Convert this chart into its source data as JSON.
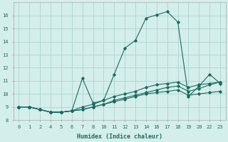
{
  "xlabel": "Humidex (Indice chaleur)",
  "bg_color": "#d4eeeb",
  "grid_color": "#b0d8d4",
  "line_color": "#1a6b5e",
  "xtick_labels": [
    "0",
    "1",
    "2",
    "4",
    "5",
    "6",
    "7",
    "8",
    "10",
    "11",
    "12",
    "13",
    "14",
    "16",
    "17",
    "18",
    "19",
    "20",
    "22",
    "23"
  ],
  "ytick_labels": [
    "8",
    "9",
    "10",
    "11",
    "12",
    "13",
    "14",
    "15",
    "16"
  ],
  "ylim": [
    8.0,
    17.0
  ],
  "series": [
    {
      "xi": [
        0,
        1,
        2,
        3,
        4,
        5,
        6,
        7,
        8,
        9,
        10,
        11,
        12,
        13,
        14,
        15,
        16,
        17,
        18,
        19
      ],
      "y": [
        9.0,
        9.0,
        8.8,
        8.6,
        8.6,
        8.7,
        11.2,
        9.3,
        9.5,
        11.5,
        13.5,
        14.1,
        15.8,
        16.05,
        16.3,
        15.5,
        9.8,
        10.6,
        11.5,
        10.8
      ]
    },
    {
      "xi": [
        0,
        1,
        2,
        3,
        4,
        5,
        6,
        7,
        8,
        9,
        10,
        11,
        12,
        13,
        14,
        15,
        16,
        17,
        18,
        19
      ],
      "y": [
        9.0,
        9.0,
        8.8,
        8.6,
        8.6,
        8.7,
        9.0,
        9.2,
        9.5,
        9.8,
        10.0,
        10.2,
        10.5,
        10.7,
        10.8,
        10.9,
        10.5,
        10.7,
        10.8,
        10.9
      ]
    },
    {
      "xi": [
        0,
        1,
        2,
        3,
        4,
        5,
        6,
        7,
        8,
        9,
        10,
        11,
        12,
        13,
        14,
        15,
        16,
        17,
        18,
        19
      ],
      "y": [
        9.0,
        9.0,
        8.8,
        8.6,
        8.6,
        8.7,
        8.8,
        9.0,
        9.2,
        9.4,
        9.6,
        9.8,
        10.0,
        10.1,
        10.2,
        10.3,
        9.9,
        10.0,
        10.1,
        10.2
      ]
    },
    {
      "xi": [
        0,
        1,
        2,
        3,
        4,
        5,
        6,
        7,
        8,
        9,
        10,
        11,
        12,
        13,
        14,
        15,
        16,
        17,
        18,
        19
      ],
      "y": [
        9.0,
        9.0,
        8.8,
        8.6,
        8.6,
        8.7,
        8.8,
        9.0,
        9.2,
        9.5,
        9.7,
        9.9,
        10.1,
        10.3,
        10.5,
        10.6,
        10.2,
        10.4,
        10.7,
        10.9
      ]
    }
  ]
}
